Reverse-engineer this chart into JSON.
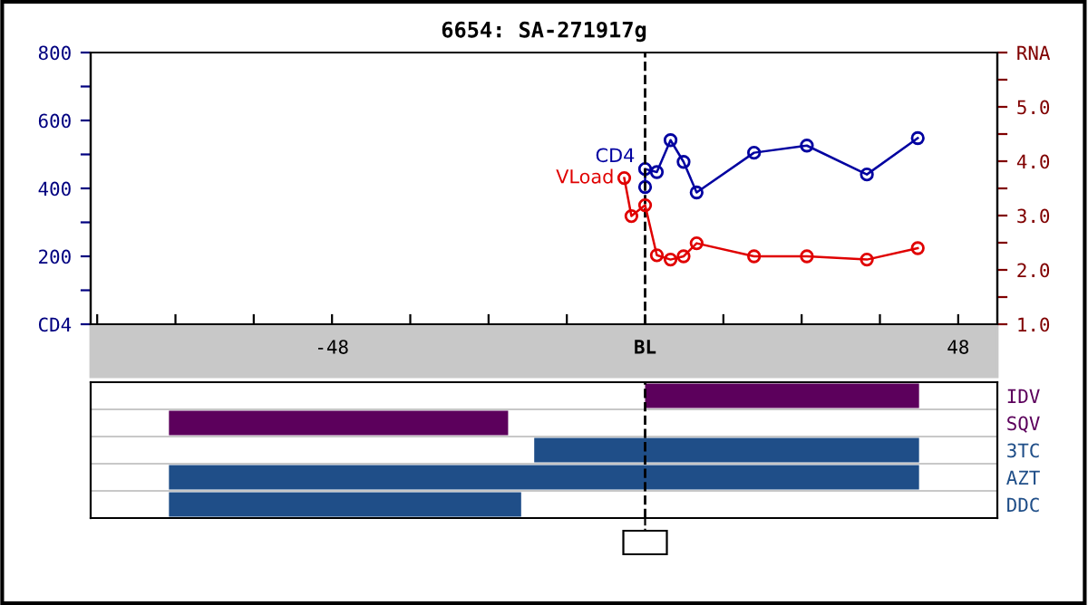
{
  "chart_data": [
    {
      "type": "line",
      "title": "6654: SA-271917g",
      "marker": "circle",
      "legend": false,
      "grid": false,
      "xlim": [
        -85,
        54
      ],
      "xticks": [
        {
          "value": -84,
          "label": null
        },
        {
          "value": -72,
          "label": null
        },
        {
          "value": -60,
          "label": null
        },
        {
          "value": -48,
          "label": "-48"
        },
        {
          "value": -36,
          "label": null
        },
        {
          "value": -24,
          "label": null
        },
        {
          "value": -12,
          "label": null
        },
        {
          "value": 0,
          "label": "BL"
        },
        {
          "value": 12,
          "label": null
        },
        {
          "value": 24,
          "label": null
        },
        {
          "value": 36,
          "label": null
        },
        {
          "value": 48,
          "label": "48"
        }
      ],
      "ylim": [
        0,
        800
      ],
      "yticks": [
        {
          "value": 0,
          "label": "CD4"
        },
        {
          "value": 100,
          "label": null
        },
        200,
        {
          "value": 300,
          "label": null
        },
        400,
        {
          "value": 500,
          "label": null
        },
        600,
        {
          "value": 700,
          "label": null
        },
        800
      ],
      "y2lim": [
        1,
        6
      ],
      "y2ticks": [
        {
          "value": 1,
          "label": "1.0"
        },
        {
          "value": 1.5,
          "label": null
        },
        {
          "value": 2,
          "label": "2.0"
        },
        {
          "value": 2.5,
          "label": null
        },
        {
          "value": 3,
          "label": "3.0"
        },
        {
          "value": 3.5,
          "label": null
        },
        {
          "value": 4,
          "label": "4.0"
        },
        {
          "value": 4.5,
          "label": null
        },
        {
          "value": 5,
          "label": "5.0"
        },
        {
          "value": 5.5,
          "label": null
        },
        {
          "value": 6,
          "label": "RNA"
        }
      ],
      "ref_lines": [
        {
          "axis": "x",
          "value": 0,
          "color": "#000000",
          "line_style": "dashed"
        }
      ],
      "series": [
        {
          "name": "CD4",
          "color": "#0000a0",
          "x": [
            0,
            0,
            1.8,
            3.9,
            5.9,
            7.9,
            16.7,
            24.8,
            34,
            41.8
          ],
          "values": [
            404,
            457,
            448,
            542,
            478,
            388,
            505,
            526,
            441,
            548
          ]
        },
        {
          "name": "VLoad",
          "color": "#e00000",
          "axis": "y2",
          "x": [
            -3.2,
            -2.1,
            0,
            1.8,
            3.9,
            5.9,
            7.9,
            16.7,
            24.8,
            34,
            41.8
          ],
          "values": [
            3.69,
            2.99,
            3.19,
            2.27,
            2.19,
            2.25,
            2.49,
            2.25,
            2.25,
            2.19,
            2.4
          ]
        }
      ]
    },
    {
      "type": "bar",
      "orientation": "horizontal",
      "tick_labels": "y",
      "grid": false,
      "xlim": [
        -85,
        54
      ],
      "categories": [
        "IDV",
        "SQV",
        "3TC",
        "AZT",
        "DDC"
      ],
      "base": [
        0,
        -73,
        -17,
        -73,
        -73
      ],
      "values": [
        42,
        52,
        59,
        115,
        54
      ],
      "colors": [
        "#5c005c",
        "#5c005c",
        "#1f4e88",
        "#1f4e88",
        "#1f4e88"
      ],
      "ref_lines": [
        {
          "axis": "x",
          "value": 0,
          "color": "#000000",
          "line_style": "dashed"
        }
      ]
    }
  ]
}
